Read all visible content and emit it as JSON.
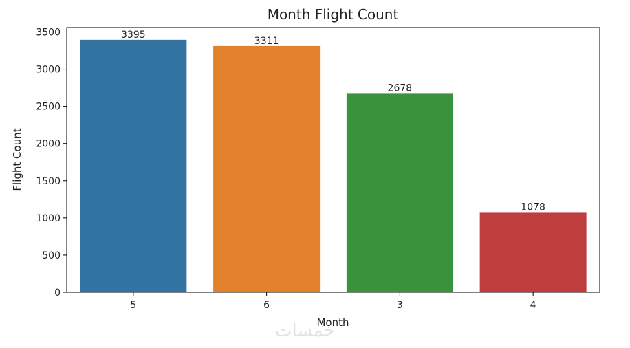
{
  "chart_data": {
    "type": "bar",
    "title": "Month Flight Count",
    "xlabel": "Month",
    "ylabel": "Flight Count",
    "categories": [
      "5",
      "6",
      "3",
      "4"
    ],
    "values": [
      3395,
      3311,
      2678,
      1078
    ],
    "data_labels": [
      "3395",
      "3311",
      "2678",
      "1078"
    ],
    "colors": [
      "#3274a1",
      "#e1812c",
      "#3a923a",
      "#c03d3e"
    ],
    "ylim": [
      0,
      3560
    ],
    "yticks": [
      0,
      500,
      1000,
      1500,
      2000,
      2500,
      3000,
      3500
    ],
    "grid": false
  },
  "watermark": "خمسات"
}
